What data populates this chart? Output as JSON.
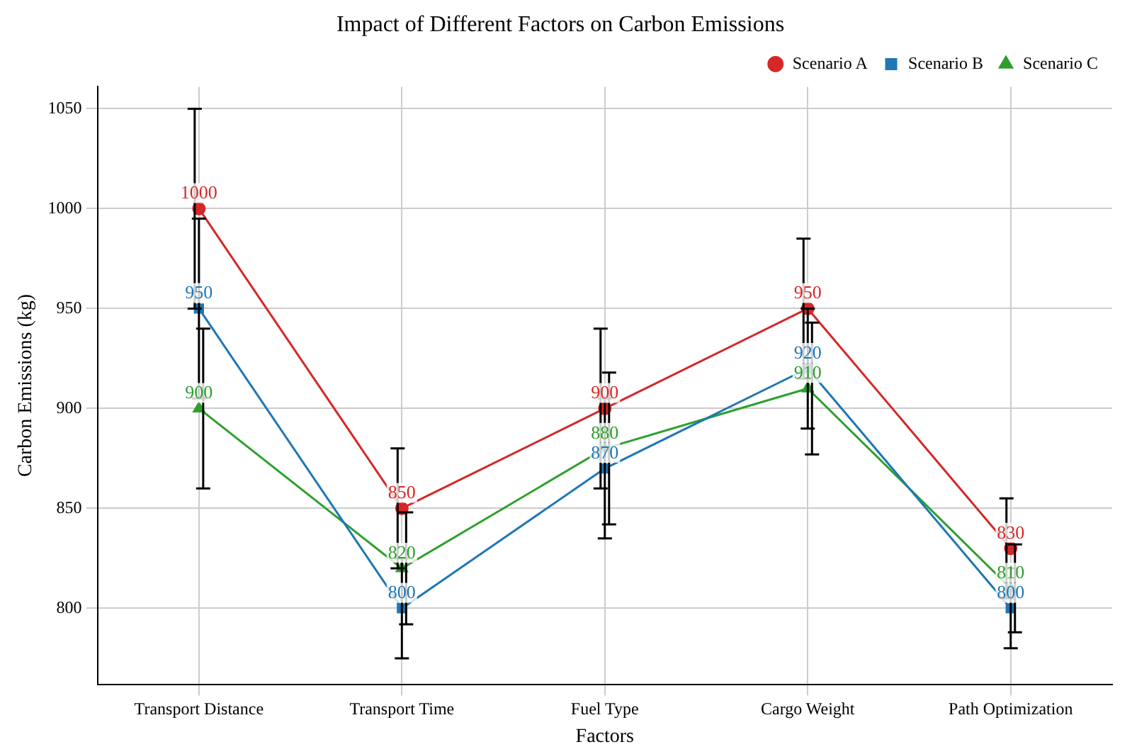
{
  "chart_data": {
    "type": "line",
    "title": "Impact of Different Factors on Carbon Emissions",
    "xlabel": "Factors",
    "ylabel": "Carbon Emissions (kg)",
    "categories": [
      "Transport Distance",
      "Transport Time",
      "Fuel Type",
      "Cargo Weight",
      "Path Optimization"
    ],
    "series": [
      {
        "name": "Scenario A",
        "color": "#d62728",
        "marker": "circle",
        "values": [
          1000,
          850,
          900,
          950,
          830
        ],
        "errors": [
          50,
          30,
          40,
          35,
          25
        ]
      },
      {
        "name": "Scenario B",
        "color": "#1f77b4",
        "marker": "square",
        "values": [
          950,
          800,
          870,
          920,
          800
        ],
        "errors": [
          45,
          25,
          35,
          30,
          20
        ]
      },
      {
        "name": "Scenario C",
        "color": "#2ca02c",
        "marker": "triangle",
        "values": [
          900,
          820,
          880,
          910,
          810
        ],
        "errors": [
          40,
          28,
          38,
          33,
          22
        ]
      }
    ],
    "ylim": [
      762,
      1061
    ],
    "yticks": [
      800,
      850,
      900,
      950,
      1000,
      1050
    ],
    "grid": true,
    "legend": "top right",
    "data_labels": true,
    "line_style": "solid"
  }
}
